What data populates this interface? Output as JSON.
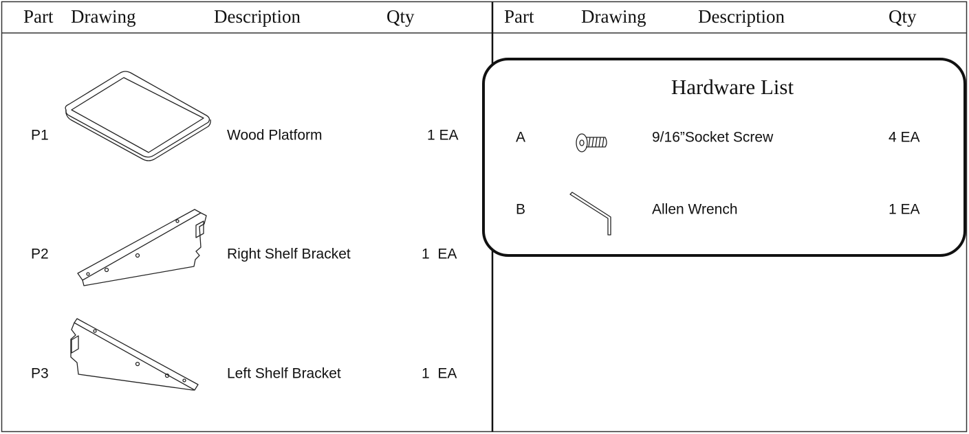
{
  "header": {
    "left": [
      "Part",
      "Drawing",
      "Description",
      "Qty"
    ],
    "right": [
      "Part",
      "Drawing",
      "Description",
      "Qty"
    ]
  },
  "parts": [
    {
      "part": "P1",
      "description": "Wood Platform",
      "qty": "1 EA"
    },
    {
      "part": "P2",
      "description": "Right Shelf Bracket",
      "qty": "1  EA"
    },
    {
      "part": "P3",
      "description": "Left Shelf Bracket",
      "qty": "1  EA"
    }
  ],
  "hardware": {
    "title": "Hardware List",
    "items": [
      {
        "part": "A",
        "description": "9/16”Socket Screw",
        "qty": "4 EA"
      },
      {
        "part": "B",
        "description": "Allen Wrench",
        "qty": "1 EA"
      }
    ]
  }
}
